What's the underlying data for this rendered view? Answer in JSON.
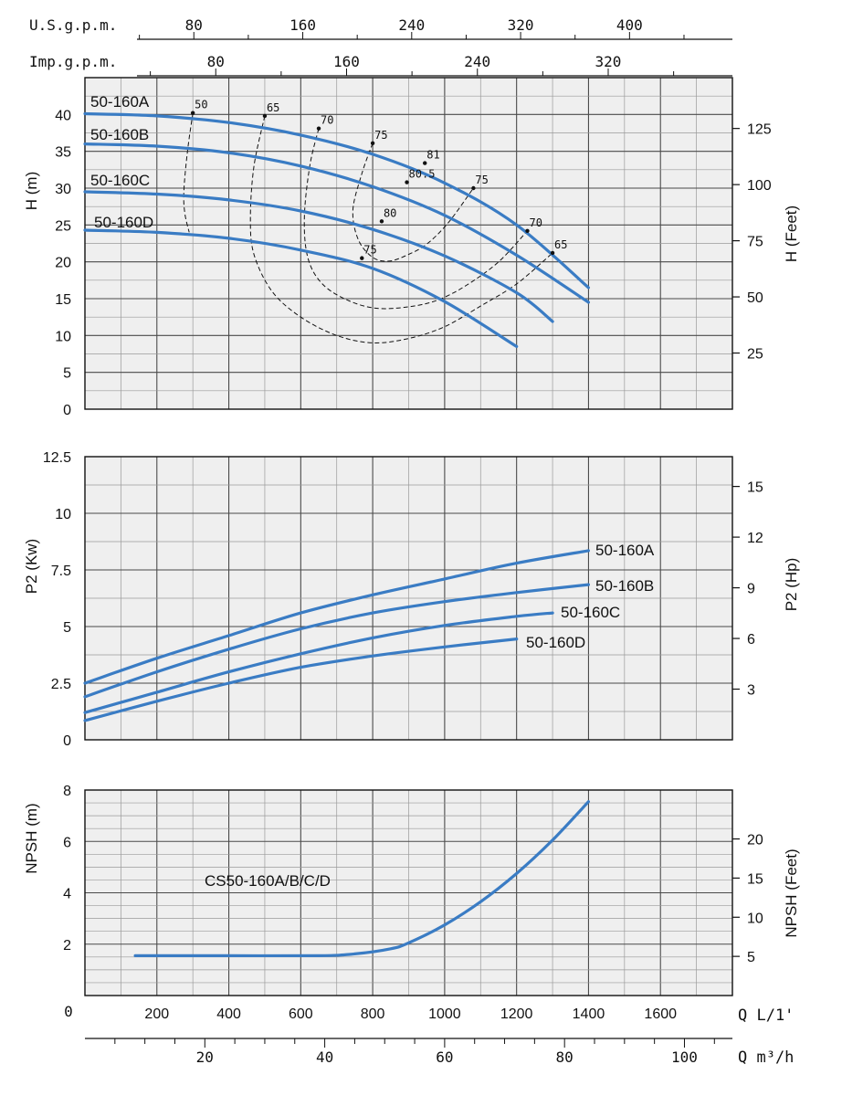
{
  "chart_data": [
    {
      "type": "line",
      "panel": "head",
      "ylabel_left": "H (m)",
      "ylabel_right": "H (Feet)",
      "x_unit": "L/min",
      "xlim": [
        0,
        1800
      ],
      "ylim": [
        0,
        45
      ],
      "yticks_left": [
        "0",
        "5",
        "10",
        "15",
        "20",
        "25",
        "30",
        "35",
        "40"
      ],
      "yticks_right": [
        "25",
        "50",
        "75",
        "100",
        "125"
      ],
      "yticks_right_values_m": [
        7.62,
        15.24,
        22.86,
        30.48,
        38.1
      ],
      "series": [
        {
          "name": "50-160A",
          "x": [
            0,
            200,
            400,
            600,
            800,
            1000,
            1200,
            1400
          ],
          "y": [
            40.1,
            39.8,
            38.9,
            37.2,
            34.6,
            30.7,
            25.0,
            16.5
          ]
        },
        {
          "name": "50-160B",
          "x": [
            0,
            200,
            400,
            600,
            800,
            1000,
            1200,
            1400
          ],
          "y": [
            36.0,
            35.7,
            34.8,
            33.0,
            30.2,
            26.3,
            20.9,
            14.5
          ]
        },
        {
          "name": "50-160C",
          "x": [
            0,
            200,
            400,
            600,
            800,
            1000,
            1200,
            1300
          ],
          "y": [
            29.5,
            29.2,
            28.4,
            26.9,
            24.4,
            20.8,
            15.8,
            11.9
          ]
        },
        {
          "name": "50-160D",
          "x": [
            0,
            200,
            400,
            600,
            800,
            1000,
            1200
          ],
          "y": [
            24.3,
            24.0,
            23.2,
            21.6,
            19.1,
            14.6,
            8.5
          ]
        }
      ],
      "efficiency_labels": [
        {
          "text": "50",
          "x": 300,
          "y": 40.2
        },
        {
          "text": "65",
          "x": 500,
          "y": 39.8
        },
        {
          "text": "70",
          "x": 650,
          "y": 38.1
        },
        {
          "text": "75",
          "x": 800,
          "y": 36.1
        },
        {
          "text": "81",
          "x": 945,
          "y": 33.4
        },
        {
          "text": "75",
          "x": 1080,
          "y": 30.0
        },
        {
          "text": "80.5",
          "x": 895,
          "y": 30.8
        },
        {
          "text": "80",
          "x": 825,
          "y": 25.5
        },
        {
          "text": "75",
          "x": 770,
          "y": 20.5
        },
        {
          "text": "70",
          "x": 1230,
          "y": 24.2
        },
        {
          "text": "65",
          "x": 1300,
          "y": 21.2
        }
      ],
      "efficiency_contours": [
        {
          "label": "50",
          "x": [
            300,
            285,
            275,
            278,
            290
          ],
          "y": [
            40.2,
            35.0,
            29.5,
            26.5,
            24.0
          ]
        },
        {
          "label": "65",
          "x": [
            500,
            470,
            460,
            470,
            520,
            600,
            700,
            800,
            900,
            1000,
            1100,
            1200,
            1300
          ],
          "y": [
            39.8,
            33.0,
            26.0,
            21.0,
            16.0,
            12.5,
            10.0,
            9.0,
            9.6,
            11.2,
            14.0,
            17.0,
            21.2
          ]
        },
        {
          "label": "70",
          "x": [
            650,
            625,
            610,
            620,
            660,
            730,
            810,
            900,
            980,
            1060,
            1150,
            1230
          ],
          "y": [
            38.1,
            33.0,
            26.0,
            20.5,
            17.0,
            14.8,
            13.7,
            13.9,
            14.8,
            16.8,
            20.0,
            24.2
          ]
        },
        {
          "label": "75",
          "x": [
            800,
            770,
            745,
            760,
            800,
            845,
            895,
            950,
            1010,
            1080
          ],
          "y": [
            36.1,
            32.0,
            27.0,
            23.0,
            20.6,
            20.1,
            20.9,
            22.4,
            25.3,
            30.0
          ]
        }
      ],
      "curve_labels": [
        "50-160A",
        "50-160B",
        "50-160C",
        "50-160D"
      ],
      "top_axes": [
        {
          "label": "U.S.g.p.m.",
          "ticks": [
            "80",
            "160",
            "240",
            "320",
            "400"
          ],
          "values": [
            80,
            160,
            240,
            320,
            400
          ],
          "lpm_per_unit": 3.785
        },
        {
          "label": "Imp.g.p.m.",
          "ticks": [
            "80",
            "160",
            "240",
            "320"
          ],
          "values": [
            80,
            160,
            240,
            320
          ],
          "lpm_per_unit": 4.546
        }
      ]
    },
    {
      "type": "line",
      "panel": "power",
      "ylabel_left": "P2 (Kw)",
      "ylabel_right": "P2 (Hp)",
      "xlim": [
        0,
        1800
      ],
      "ylim": [
        0,
        12.5
      ],
      "yticks_left": [
        "0",
        "2.5",
        "5",
        "7.5",
        "10",
        "12.5"
      ],
      "yticks_right": [
        "3",
        "6",
        "9",
        "12",
        "15"
      ],
      "yticks_right_values_kw": [
        2.237,
        4.474,
        6.711,
        8.948,
        11.185
      ],
      "series": [
        {
          "name": "50-160A",
          "x": [
            0,
            200,
            400,
            600,
            800,
            1000,
            1200,
            1400
          ],
          "y": [
            2.5,
            3.6,
            4.6,
            5.6,
            6.4,
            7.1,
            7.8,
            8.35
          ]
        },
        {
          "name": "50-160B",
          "x": [
            0,
            200,
            400,
            600,
            800,
            1000,
            1200,
            1400
          ],
          "y": [
            1.9,
            3.0,
            4.0,
            4.9,
            5.6,
            6.1,
            6.5,
            6.85
          ]
        },
        {
          "name": "50-160C",
          "x": [
            0,
            200,
            400,
            600,
            800,
            1000,
            1200,
            1300
          ],
          "y": [
            1.2,
            2.1,
            3.0,
            3.8,
            4.5,
            5.05,
            5.45,
            5.6
          ]
        },
        {
          "name": "50-160D",
          "x": [
            0,
            200,
            400,
            600,
            800,
            1000,
            1200
          ],
          "y": [
            0.85,
            1.7,
            2.5,
            3.2,
            3.7,
            4.1,
            4.45
          ]
        }
      ],
      "curve_labels": [
        "50-160A",
        "50-160B",
        "50-160C",
        "50-160D"
      ]
    },
    {
      "type": "line",
      "panel": "npsh",
      "ylabel_left": "NPSH (m)",
      "ylabel_right": "NPSH (Feet)",
      "xlim": [
        0,
        1800
      ],
      "ylim": [
        0,
        8
      ],
      "yticks_left": [
        "2",
        "4",
        "6",
        "8"
      ],
      "yticks_right": [
        "5",
        "10",
        "15",
        "20"
      ],
      "yticks_right_values_m": [
        1.524,
        3.048,
        4.572,
        6.096
      ],
      "series": [
        {
          "name": "CS50-160A/B/C/D",
          "x": [
            140,
            400,
            650,
            750,
            850,
            900,
            1000,
            1100,
            1200,
            1300,
            1400
          ],
          "y": [
            1.55,
            1.55,
            1.55,
            1.62,
            1.82,
            2.05,
            2.75,
            3.65,
            4.75,
            6.05,
            7.55
          ]
        }
      ],
      "curve_label": "CS50-160A/B/C/D"
    }
  ],
  "x_axis": {
    "origin_label": "0",
    "lpm_label": "Q L/1'",
    "lpm_ticks": [
      "200",
      "400",
      "600",
      "800",
      "1000",
      "1200",
      "1400",
      "1600"
    ],
    "lpm_values": [
      200,
      400,
      600,
      800,
      1000,
      1200,
      1400,
      1600
    ],
    "m3h_label": "Q m³/h",
    "m3h_ticks": [
      "20",
      "40",
      "60",
      "80",
      "100"
    ],
    "m3h_values": [
      20,
      40,
      60,
      80,
      100
    ]
  },
  "colors": {
    "curve": "#3a7cc4",
    "panel_bg": "#efefef",
    "grid_major": "#4a4a4a",
    "grid_minor": "#9a9a9a",
    "contour": "#111111"
  }
}
